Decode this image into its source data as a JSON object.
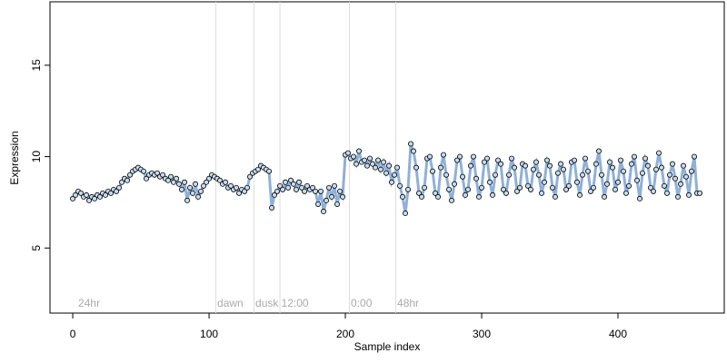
{
  "chart_data": {
    "type": "line",
    "x_label": "Sample index",
    "y_label": "Expression",
    "x": [
      0,
      2,
      4,
      6,
      8,
      10,
      12,
      14,
      16,
      18,
      20,
      22,
      24,
      26,
      28,
      30,
      32,
      34,
      36,
      38,
      40,
      42,
      44,
      46,
      48,
      50,
      52,
      54,
      56,
      58,
      60,
      62,
      64,
      66,
      68,
      70,
      72,
      74,
      76,
      78,
      80,
      82,
      84,
      86,
      88,
      90,
      92,
      94,
      96,
      98,
      100,
      102,
      104,
      106,
      108,
      110,
      112,
      114,
      116,
      118,
      120,
      122,
      124,
      126,
      128,
      130,
      132,
      134,
      136,
      138,
      140,
      142,
      144,
      146,
      148,
      150,
      152,
      154,
      156,
      158,
      160,
      162,
      164,
      166,
      168,
      170,
      172,
      174,
      176,
      178,
      180,
      182,
      184,
      186,
      188,
      190,
      192,
      194,
      196,
      198,
      200,
      202,
      204,
      206,
      208,
      210,
      212,
      214,
      216,
      218,
      220,
      222,
      224,
      226,
      228,
      230,
      232,
      234,
      236,
      238,
      240,
      242,
      244,
      246,
      248,
      250,
      252,
      254,
      256,
      258,
      260,
      262,
      264,
      266,
      268,
      270,
      272,
      274,
      276,
      278,
      280,
      282,
      284,
      286,
      288,
      290,
      292,
      294,
      296,
      298,
      300,
      302,
      304,
      306,
      308,
      310,
      312,
      314,
      316,
      318,
      320,
      322,
      324,
      326,
      328,
      330,
      332,
      334,
      336,
      338,
      340,
      342,
      344,
      346,
      348,
      350,
      352,
      354,
      356,
      358,
      360,
      362,
      364,
      366,
      368,
      370,
      372,
      374,
      376,
      378,
      380,
      382,
      384,
      386,
      388,
      390,
      392,
      394,
      396,
      398,
      400,
      402,
      404,
      406,
      408,
      410,
      412,
      414,
      416,
      418,
      420,
      422,
      424,
      426,
      428,
      430,
      432,
      434,
      436,
      438,
      440,
      442,
      444,
      446,
      448,
      450,
      452,
      454,
      456,
      458,
      460
    ],
    "series": [
      {
        "color": "#8fb0d8",
        "point_fill": "#c6dbef",
        "values": [
          7.7,
          7.9,
          8.1,
          8.0,
          7.8,
          7.9,
          7.6,
          7.8,
          7.7,
          7.9,
          7.8,
          8.0,
          7.9,
          8.1,
          8.0,
          8.2,
          8.1,
          8.3,
          8.6,
          8.8,
          8.7,
          9.0,
          9.2,
          9.3,
          9.4,
          9.3,
          9.2,
          8.8,
          9.0,
          9.1,
          9.0,
          9.1,
          8.9,
          9.0,
          8.8,
          8.7,
          8.9,
          8.6,
          8.8,
          8.5,
          8.2,
          8.6,
          7.6,
          8.3,
          8.0,
          8.5,
          7.8,
          8.1,
          8.4,
          8.6,
          8.8,
          9.0,
          8.9,
          8.8,
          8.7,
          8.5,
          8.6,
          8.3,
          8.4,
          8.2,
          8.3,
          8.0,
          8.2,
          8.1,
          8.3,
          8.9,
          9.1,
          9.2,
          9.3,
          9.5,
          9.4,
          9.3,
          9.2,
          7.2,
          7.9,
          8.1,
          8.4,
          8.2,
          8.6,
          8.3,
          8.7,
          8.5,
          8.2,
          8.6,
          8.3,
          8.1,
          8.4,
          8.2,
          8.3,
          8.1,
          7.4,
          8.1,
          7.0,
          7.6,
          8.3,
          7.8,
          8.4,
          7.4,
          8.1,
          7.8,
          10.1,
          10.2,
          9.9,
          10.0,
          9.6,
          10.3,
          9.7,
          9.8,
          9.5,
          9.9,
          9.6,
          9.4,
          9.8,
          9.3,
          9.7,
          9.1,
          9.5,
          8.6,
          9.0,
          9.4,
          8.4,
          7.8,
          6.9,
          8.2,
          10.7,
          10.3,
          9.4,
          8.0,
          7.8,
          8.3,
          9.9,
          10.0,
          9.2,
          8.0,
          7.8,
          9.4,
          10.1,
          9.0,
          8.2,
          7.6,
          8.5,
          9.8,
          10.0,
          8.9,
          7.9,
          8.2,
          9.5,
          10.0,
          8.8,
          7.8,
          8.3,
          9.7,
          9.9,
          8.6,
          7.9,
          9.0,
          9.8,
          9.6,
          8.2,
          8.0,
          9.0,
          9.9,
          9.4,
          8.1,
          8.3,
          9.6,
          9.5,
          8.4,
          8.2,
          9.3,
          9.7,
          9.0,
          8.0,
          8.6,
          9.8,
          9.5,
          8.3,
          7.8,
          9.1,
          9.6,
          9.3,
          8.2,
          8.4,
          9.7,
          9.8,
          8.6,
          7.9,
          9.0,
          9.9,
          9.2,
          8.1,
          8.3,
          9.6,
          10.3,
          9.0,
          7.8,
          8.5,
          9.7,
          9.4,
          8.2,
          8.6,
          9.8,
          9.2,
          8.0,
          8.4,
          9.6,
          10.0,
          8.7,
          7.7,
          9.1,
          9.9,
          9.5,
          8.3,
          8.1,
          9.3,
          10.2,
          9.4,
          8.4,
          8.0,
          9.0,
          9.6,
          8.8,
          7.8,
          8.5,
          9.5,
          8.9,
          7.9,
          9.2,
          10.0,
          8.0,
          8.0
        ]
      }
    ],
    "vlines": [
      105,
      133,
      152,
      203,
      237
    ],
    "annotations": [
      {
        "x": 4,
        "label": "24hr"
      },
      {
        "x": 106,
        "label": "dawn"
      },
      {
        "x": 134,
        "label": "dusk"
      },
      {
        "x": 153,
        "label": "12:00"
      },
      {
        "x": 204,
        "label": "0:00"
      },
      {
        "x": 238,
        "label": "48hr"
      }
    ],
    "xlim": [
      -16.7,
      478
    ],
    "ylim": [
      1.44,
      18.47
    ],
    "xticks": [
      0,
      100,
      200,
      300,
      400
    ],
    "yticks": [
      5,
      10,
      15
    ]
  }
}
